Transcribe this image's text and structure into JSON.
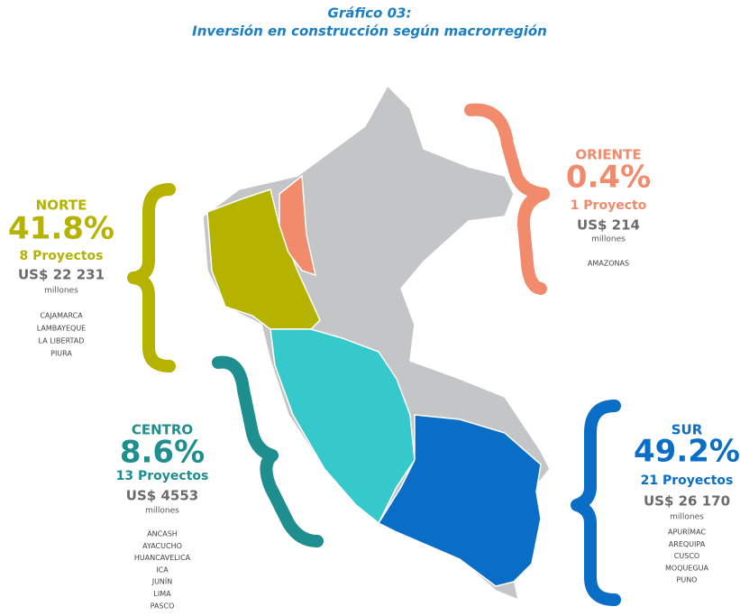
{
  "header": {
    "title": "Gráfico 03:",
    "subtitle": "Inversión en construcción según macrorregión"
  },
  "regions": [
    {
      "name": "NORTE",
      "percent": "41.8%",
      "projects": "8 Proyectos",
      "amount": "US$ 22 231",
      "unit": "millones",
      "color": "#b5b200",
      "departments": [
        "CAJAMARCA",
        "LAMBAYEQUE",
        "LA LIBERTAD",
        "PIURA"
      ]
    },
    {
      "name": "ORIENTE",
      "percent": "0.4%",
      "projects": "1 Proyecto",
      "amount": "US$ 214",
      "unit": "millones",
      "color": "#f28a6c",
      "departments": [
        "AMAZONAS"
      ]
    },
    {
      "name": "CENTRO",
      "percent": "8.6%",
      "projects": "13 Proyectos",
      "amount": "US$ 4553",
      "unit": "millones",
      "color": "#1e8e8e",
      "departments": [
        "ÁNCASH",
        "AYACUCHO",
        "HUANCAVELICA",
        "ICA",
        "JUNÍN",
        "LIMA",
        "PASCO"
      ]
    },
    {
      "name": "SUR",
      "percent": "49.2%",
      "projects": "21 Proyectos",
      "amount": "US$ 26 170",
      "unit": "millones",
      "color": "#0a6ec6",
      "departments": [
        "APURÍMAC",
        "AREQUIPA",
        "CUSCO",
        "MOQUEGUA",
        "PUNO"
      ]
    }
  ]
}
